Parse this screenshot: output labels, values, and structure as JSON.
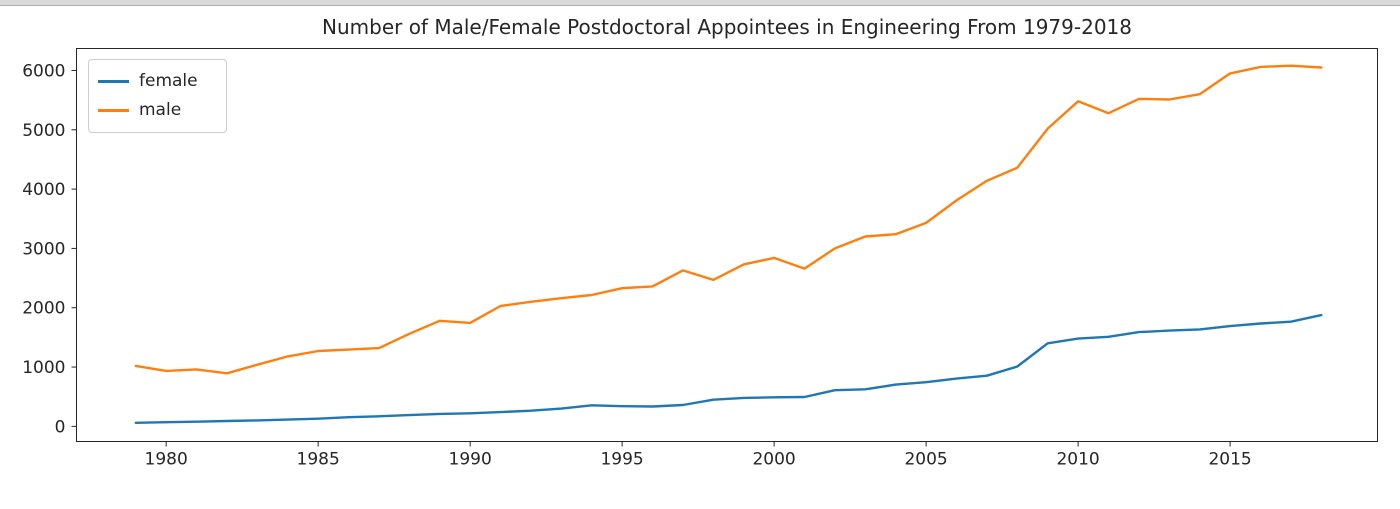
{
  "chart_data": {
    "type": "line",
    "title": "Number of Male/Female Postdoctoral Appointees in Engineering From 1979-2018",
    "xlabel": "",
    "ylabel": "",
    "grid": false,
    "legend_position": "upper left",
    "background": "#ffffff",
    "text_color": "#262626",
    "axis_color": "#262626",
    "xlim": [
      1977.05,
      2019.85
    ],
    "ylim": [
      -255,
      6370
    ],
    "x_ticks": [
      1980,
      1985,
      1990,
      1995,
      2000,
      2005,
      2010,
      2015
    ],
    "y_ticks": [
      0,
      1000,
      2000,
      3000,
      4000,
      5000,
      6000
    ],
    "x": [
      1979,
      1980,
      1981,
      1982,
      1983,
      1984,
      1985,
      1986,
      1987,
      1988,
      1989,
      1990,
      1991,
      1992,
      1993,
      1994,
      1995,
      1996,
      1997,
      1998,
      1999,
      2000,
      2001,
      2002,
      2003,
      2004,
      2005,
      2006,
      2007,
      2008,
      2009,
      2010,
      2011,
      2012,
      2013,
      2014,
      2015,
      2016,
      2017,
      2018
    ],
    "series": [
      {
        "name": "female",
        "color": "#1f77b4",
        "values": [
          60,
          70,
          78,
          90,
          100,
          115,
          130,
          155,
          170,
          190,
          210,
          220,
          240,
          265,
          300,
          355,
          340,
          335,
          360,
          450,
          480,
          490,
          495,
          610,
          625,
          705,
          745,
          805,
          855,
          1010,
          1400,
          1480,
          1510,
          1590,
          1615,
          1635,
          1690,
          1735,
          1765,
          1875
        ]
      },
      {
        "name": "male",
        "color": "#ff7f0e",
        "values": [
          1020,
          935,
          960,
          895,
          1040,
          1180,
          1270,
          1295,
          1320,
          1560,
          1780,
          1745,
          2030,
          2100,
          2160,
          2215,
          2330,
          2360,
          2630,
          2470,
          2730,
          2840,
          2660,
          3000,
          3200,
          3240,
          3430,
          3810,
          4140,
          4360,
          5020,
          5480,
          5280,
          5520,
          5510,
          5600,
          5950,
          6060,
          6080,
          6050
        ]
      }
    ]
  }
}
